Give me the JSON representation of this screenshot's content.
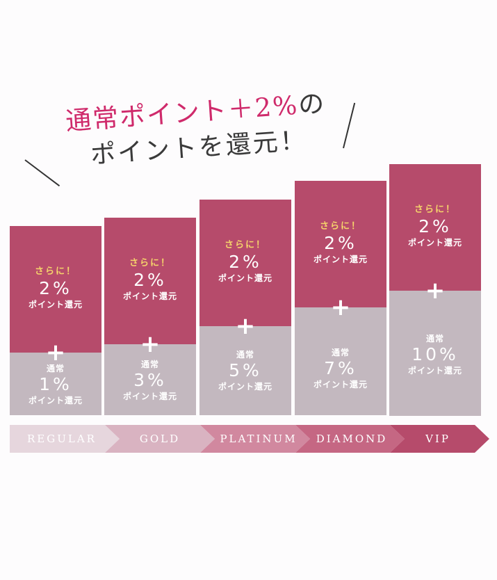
{
  "headline": {
    "line1_pink": "通常ポイント＋2%",
    "line1_suffix": "の",
    "line2": "ポイントを還元！"
  },
  "columns": [
    {
      "tier": "REGULAR",
      "bonus_label": "さらに！",
      "bonus_percent": "2%",
      "bonus_note": "ポイント還元",
      "base_label": "通常",
      "base_percent": "1%",
      "base_note": "ポイント還元"
    },
    {
      "tier": "GOLD",
      "bonus_label": "さらに！",
      "bonus_percent": "2%",
      "bonus_note": "ポイント還元",
      "base_label": "通常",
      "base_percent": "3%",
      "base_note": "ポイント還元"
    },
    {
      "tier": "PLATINUM",
      "bonus_label": "さらに！",
      "bonus_percent": "2%",
      "bonus_note": "ポイント還元",
      "base_label": "通常",
      "base_percent": "5%",
      "base_note": "ポイント還元"
    },
    {
      "tier": "DIAMOND",
      "bonus_label": "さらに！",
      "bonus_percent": "2%",
      "bonus_note": "ポイント還元",
      "base_label": "通常",
      "base_percent": "7%",
      "base_note": "ポイント還元"
    },
    {
      "tier": "VIP",
      "bonus_label": "さらに！",
      "bonus_percent": "2%",
      "bonus_note": "ポイント還元",
      "base_label": "通常",
      "base_percent": "10%",
      "base_note": "ポイント還元"
    }
  ],
  "plus_sign": "+",
  "colors": {
    "bonus_block": "#b64b6b",
    "base_block": "#c3b8bf",
    "highlight_text": "#f5d36b",
    "headline_pink": "#cf2a6b",
    "tier_arrows": [
      "#e6d6dd",
      "#d9b3c1",
      "#d1889f",
      "#c56783",
      "#b64b6b"
    ]
  }
}
